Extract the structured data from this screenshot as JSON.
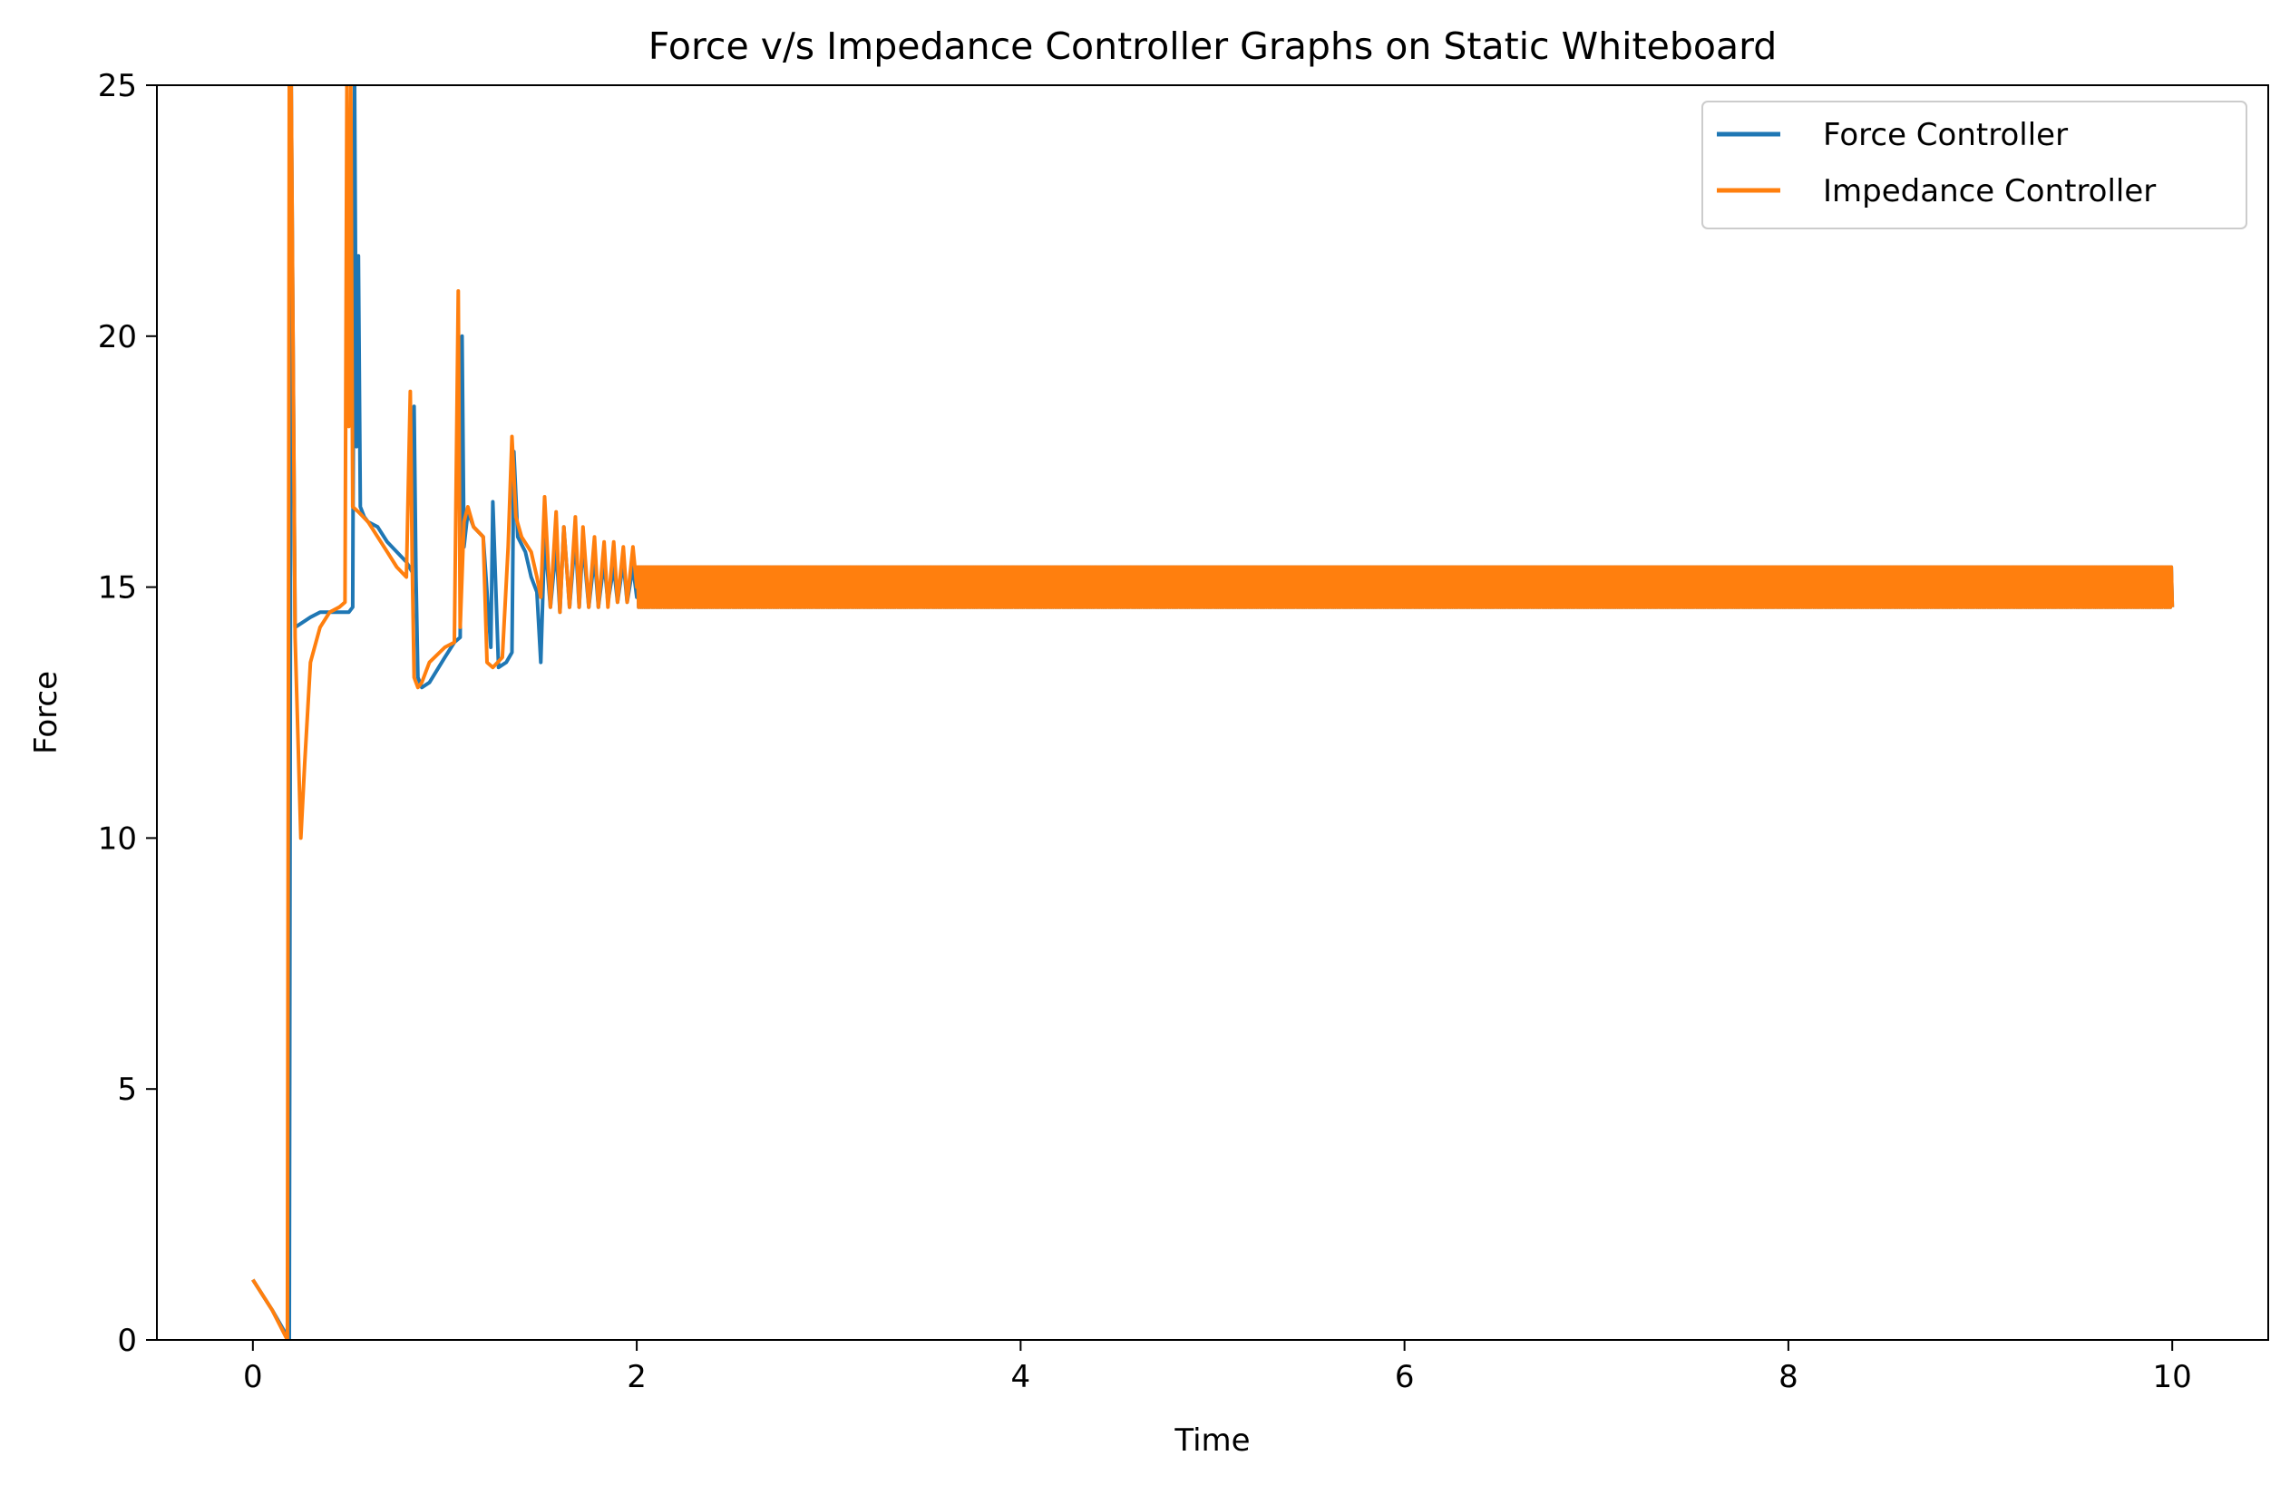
{
  "chart_data": {
    "type": "line",
    "title": "Force v/s Impedance Controller Graphs on Static Whiteboard",
    "xlabel": "Time",
    "ylabel": "Force",
    "xlim": [
      -0.5,
      10.5
    ],
    "ylim": [
      0,
      25
    ],
    "xticks": [
      0,
      2,
      4,
      6,
      8,
      10
    ],
    "xtick_labels": [
      "0",
      "2",
      "4",
      "6",
      "8",
      "10"
    ],
    "yticks": [
      0,
      5,
      10,
      15,
      20,
      25
    ],
    "ytick_labels": [
      "0",
      "5",
      "10",
      "15",
      "20",
      "25"
    ],
    "grid": false,
    "legend_position": "top-right",
    "steady_band": {
      "x_start": 2.0,
      "x_end": 10.0,
      "low": 14.6,
      "high": 15.4
    },
    "series": [
      {
        "name": "Force Controller",
        "color": "#1f77b4",
        "x": [
          0.0,
          0.1,
          0.19,
          0.2,
          0.22,
          0.26,
          0.3,
          0.35,
          0.4,
          0.45,
          0.5,
          0.52,
          0.53,
          0.54,
          0.55,
          0.56,
          0.58,
          0.6,
          0.65,
          0.7,
          0.75,
          0.8,
          0.83,
          0.84,
          0.85,
          0.86,
          0.88,
          0.92,
          1.0,
          1.05,
          1.08,
          1.09,
          1.1,
          1.12,
          1.15,
          1.2,
          1.24,
          1.25,
          1.28,
          1.32,
          1.35,
          1.36,
          1.38,
          1.42,
          1.45,
          1.48,
          1.5,
          1.52,
          1.55,
          1.58,
          1.6,
          1.62,
          1.65,
          1.68,
          1.7,
          1.72,
          1.75,
          1.78,
          1.8,
          1.83,
          1.85,
          1.88,
          1.9,
          1.93,
          1.95,
          1.98,
          2.0
        ],
        "y": [
          1.2,
          0.6,
          0.0,
          25.0,
          14.2,
          14.3,
          14.4,
          14.5,
          14.5,
          14.5,
          14.5,
          14.6,
          25.0,
          17.8,
          21.6,
          16.6,
          16.4,
          16.3,
          16.2,
          15.9,
          15.7,
          15.5,
          15.3,
          18.6,
          15.2,
          13.2,
          13.0,
          13.1,
          13.6,
          13.9,
          14.0,
          20.0,
          15.8,
          16.5,
          16.2,
          16.0,
          13.8,
          16.7,
          13.4,
          13.5,
          13.7,
          17.7,
          16.0,
          15.7,
          15.2,
          14.9,
          13.5,
          16.0,
          14.6,
          15.8,
          14.5,
          16.2,
          14.6,
          16.0,
          14.6,
          15.9,
          14.6,
          15.6,
          14.6,
          15.5,
          14.7,
          15.4,
          14.7,
          15.5,
          14.7,
          15.4,
          14.8
        ]
      },
      {
        "name": "Impedance Controller",
        "color": "#ff7f0e",
        "x": [
          0.0,
          0.1,
          0.18,
          0.19,
          0.2,
          0.22,
          0.25,
          0.27,
          0.3,
          0.35,
          0.4,
          0.45,
          0.48,
          0.49,
          0.5,
          0.51,
          0.52,
          0.55,
          0.6,
          0.65,
          0.7,
          0.75,
          0.8,
          0.82,
          0.83,
          0.84,
          0.86,
          0.88,
          0.92,
          1.0,
          1.05,
          1.07,
          1.08,
          1.1,
          1.12,
          1.15,
          1.2,
          1.22,
          1.25,
          1.3,
          1.33,
          1.35,
          1.37,
          1.4,
          1.45,
          1.48,
          1.5,
          1.52,
          1.55,
          1.58,
          1.6,
          1.62,
          1.65,
          1.68,
          1.7,
          1.72,
          1.75,
          1.78,
          1.8,
          1.83,
          1.85,
          1.88,
          1.9,
          1.93,
          1.95,
          1.98,
          2.0
        ],
        "y": [
          1.2,
          0.6,
          0.0,
          25.0,
          25.0,
          14.0,
          10.0,
          11.5,
          13.5,
          14.2,
          14.5,
          14.6,
          14.7,
          25.0,
          18.2,
          25.0,
          16.6,
          16.5,
          16.3,
          16.0,
          15.7,
          15.4,
          15.2,
          18.9,
          15.5,
          13.2,
          13.0,
          13.1,
          13.5,
          13.8,
          13.9,
          20.9,
          14.2,
          16.3,
          16.6,
          16.2,
          16.0,
          13.5,
          13.4,
          13.6,
          15.8,
          18.0,
          16.4,
          16.0,
          15.7,
          15.2,
          14.8,
          16.8,
          14.6,
          16.5,
          14.5,
          16.2,
          14.6,
          16.4,
          14.6,
          16.2,
          14.6,
          16.0,
          14.6,
          15.9,
          14.6,
          15.9,
          14.7,
          15.8,
          14.7,
          15.8,
          15.0
        ]
      }
    ]
  }
}
